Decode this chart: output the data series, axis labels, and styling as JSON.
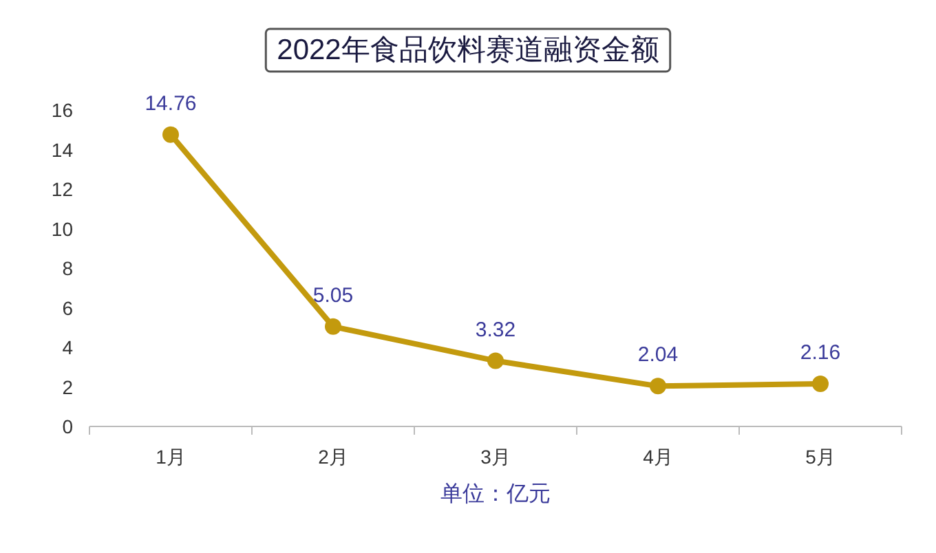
{
  "chart_data": {
    "type": "line",
    "title": "2022年食品饮料赛道融资金额",
    "xlabel": "单位：亿元",
    "categories": [
      "1月",
      "2月",
      "3月",
      "4月",
      "5月"
    ],
    "series": [
      {
        "color": "#c39a0e",
        "values": [
          14.76,
          5.05,
          3.32,
          2.04,
          2.16
        ]
      }
    ],
    "ylim": [
      0,
      16
    ],
    "yticks": [
      0,
      2,
      4,
      6,
      8,
      10,
      12,
      14,
      16
    ],
    "data_labels": true,
    "marker": "circle",
    "line_style": "solid"
  }
}
